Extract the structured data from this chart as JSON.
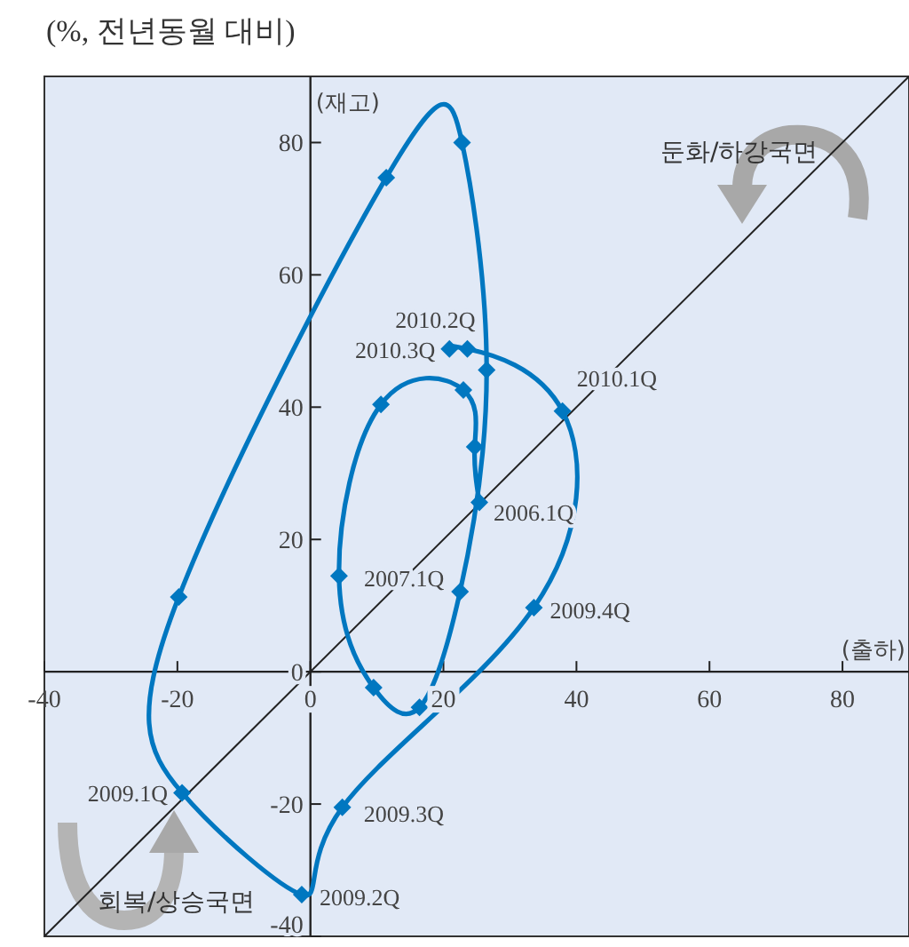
{
  "chart_data": {
    "type": "line",
    "title": "(%, 전년동월 대비)",
    "xlabel": "(출하)",
    "ylabel": "(재고)",
    "xlim": [
      -40,
      90
    ],
    "ylim": [
      -40,
      90
    ],
    "xticks": [
      -40,
      -20,
      0,
      20,
      40,
      60,
      80
    ],
    "yticks": [
      -40,
      -20,
      0,
      20,
      40,
      60,
      80
    ],
    "marker": "diamond",
    "series": [
      {
        "color": "#0077c0",
        "x": [
          25.4,
          24.7,
          23,
          10.6,
          4.3,
          9.5,
          16.4,
          22.5,
          26.5,
          22.8,
          11.4,
          -19.8,
          -19.3,
          -1.3,
          4.8,
          33.6,
          37.9,
          23.6,
          20.9
        ],
        "values": [
          25.6,
          34,
          42.6,
          40.4,
          14.5,
          -2.4,
          -5.4,
          12.1,
          45.6,
          80,
          74.7,
          11.3,
          -18.3,
          -33.7,
          -20.5,
          9.7,
          39.4,
          48.8,
          48.8
        ]
      },
      {
        "color": "#222222",
        "marker": "none",
        "x": [
          -40,
          90
        ],
        "values": [
          -40,
          90
        ]
      }
    ],
    "annotations": [
      "둔화/하강국면",
      "회복/상승국면",
      {
        "text": "2006.1Q",
        "x": 25.4,
        "y": 25.6
      },
      {
        "text": "2007.1Q",
        "x": 4.3,
        "y": 14.5
      },
      {
        "text": "2009.1Q",
        "x": -19.3,
        "y": -18.3
      },
      {
        "text": "2009.2Q",
        "x": -1.3,
        "y": -33.7
      },
      {
        "text": "2009.3Q",
        "x": 4.8,
        "y": -20.5
      },
      {
        "text": "2009.4Q",
        "x": 33.6,
        "y": 9.7
      },
      {
        "text": "2010.1Q",
        "x": 37.9,
        "y": 39.4
      },
      {
        "text": "2010.2Q",
        "x": 23.6,
        "y": 48.8
      },
      {
        "text": "2010.3Q",
        "x": 20.9,
        "y": 48.8
      }
    ]
  }
}
